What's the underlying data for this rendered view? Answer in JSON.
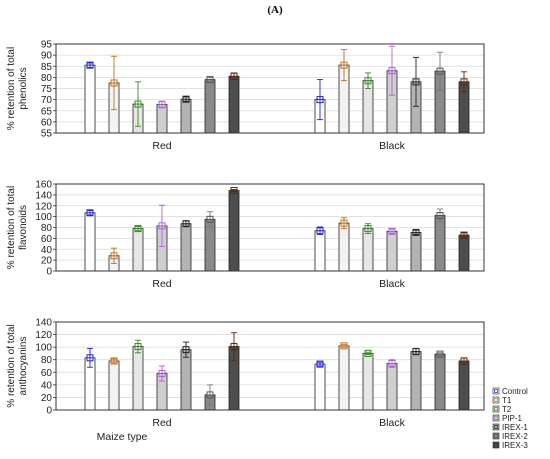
{
  "figure": {
    "panel_label": "(A)",
    "xlabel": "Maize type",
    "legend": [
      "Control",
      "T1",
      "T2",
      "PIP-1",
      "IREX-1",
      "IREX-2",
      "IREX-3"
    ]
  },
  "colors": {
    "fills": [
      "#ffffff",
      "#f3f3f3",
      "#e6e6e6",
      "#cfcfcf",
      "#b3b3b3",
      "#8a8a8a",
      "#4d4d4d"
    ],
    "markers": [
      "#2222cc",
      "#c07020",
      "#3a8a2a",
      "#b060d8",
      "#222222",
      "#555555",
      "#5a2a10"
    ],
    "errors": [
      "#2222cc",
      "#c07020",
      "#3a8a2a",
      "#b060d8",
      "#222222",
      "#777777",
      "#5a2a10"
    ]
  },
  "chart_data": [
    {
      "type": "bar",
      "ylabel": [
        "% retention of total",
        "phenolics"
      ],
      "categories": [
        "Red",
        "Black"
      ],
      "ylim": [
        55,
        95
      ],
      "yticks": [
        55,
        60,
        65,
        70,
        75,
        80,
        85,
        90,
        95
      ],
      "series": [
        {
          "name": "Control",
          "values": [
            85.5,
            70
          ],
          "errors": [
            1,
            9
          ]
        },
        {
          "name": "T1",
          "values": [
            77.5,
            85.5
          ],
          "errors": [
            12,
            7
          ]
        },
        {
          "name": "T2",
          "values": [
            68,
            78.5
          ],
          "errors": [
            10,
            3.5
          ]
        },
        {
          "name": "PIP-1",
          "values": [
            67.8,
            83
          ],
          "errors": [
            1.5,
            11
          ]
        },
        {
          "name": "IREX-1",
          "values": [
            70.2,
            78
          ],
          "errors": [
            1,
            11
          ]
        },
        {
          "name": "IREX-2",
          "values": [
            79,
            82.8
          ],
          "errors": [
            1,
            8.5
          ]
        },
        {
          "name": "IREX-3",
          "values": [
            80.5,
            78
          ],
          "errors": [
            1.5,
            4.5
          ]
        }
      ]
    },
    {
      "type": "bar",
      "ylabel": [
        "% retention of total",
        "flavonoids"
      ],
      "categories": [
        "Red",
        "Black"
      ],
      "ylim": [
        0,
        160
      ],
      "yticks": [
        0,
        20,
        40,
        60,
        80,
        100,
        120,
        140,
        160
      ],
      "series": [
        {
          "name": "Control",
          "values": [
            107,
            74
          ],
          "errors": [
            4,
            7
          ]
        },
        {
          "name": "T1",
          "values": [
            28,
            88
          ],
          "errors": [
            14,
            10
          ]
        },
        {
          "name": "T2",
          "values": [
            78,
            78
          ],
          "errors": [
            4,
            9
          ]
        },
        {
          "name": "PIP-1",
          "values": [
            83,
            73
          ],
          "errors": [
            38,
            4
          ]
        },
        {
          "name": "IREX-1",
          "values": [
            87,
            71
          ],
          "errors": [
            5,
            4
          ]
        },
        {
          "name": "IREX-2",
          "values": [
            95,
            102
          ],
          "errors": [
            14,
            12
          ]
        },
        {
          "name": "IREX-3",
          "values": [
            148,
            66
          ],
          "errors": [
            2,
            4
          ]
        }
      ]
    },
    {
      "type": "bar",
      "ylabel": [
        "% retention of total",
        "anthocyanins"
      ],
      "categories": [
        "Red",
        "Black"
      ],
      "ylim": [
        0,
        140
      ],
      "yticks": [
        0,
        20,
        40,
        60,
        80,
        100,
        120,
        140
      ],
      "series": [
        {
          "name": "Control",
          "values": [
            83,
            73
          ],
          "errors": [
            15,
            3
          ]
        },
        {
          "name": "T1",
          "values": [
            78,
            102
          ],
          "errors": [
            3,
            2
          ]
        },
        {
          "name": "T2",
          "values": [
            101,
            90
          ],
          "errors": [
            10,
            2
          ]
        },
        {
          "name": "PIP-1",
          "values": [
            58,
            74
          ],
          "errors": [
            12,
            6
          ]
        },
        {
          "name": "IREX-1",
          "values": [
            96,
            93
          ],
          "errors": [
            12,
            5
          ]
        },
        {
          "name": "IREX-2",
          "values": [
            24,
            89
          ],
          "errors": [
            16,
            2
          ]
        },
        {
          "name": "IREX-3",
          "values": [
            101,
            78
          ],
          "errors": [
            22,
            5
          ]
        }
      ]
    }
  ]
}
